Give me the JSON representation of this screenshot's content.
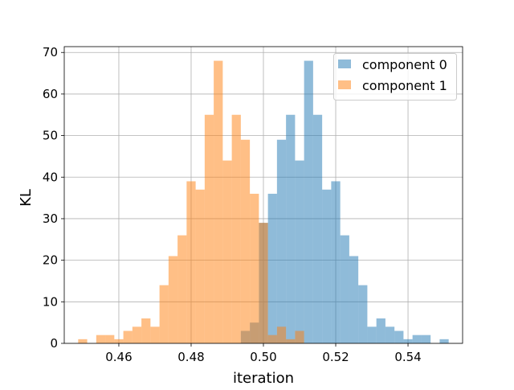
{
  "chart_data": {
    "type": "bar",
    "title": "",
    "xlabel": "iteration",
    "ylabel": "KL",
    "xlim": [
      0.4449,
      0.5551
    ],
    "ylim": [
      0,
      71.4
    ],
    "grid": true,
    "legend_position": "top-right",
    "bin_width": 0.0025,
    "xticks": [
      0.46,
      0.48,
      0.5,
      0.52,
      0.54
    ],
    "xtick_labels": [
      "0.46",
      "0.48",
      "0.50",
      "0.52",
      "0.54"
    ],
    "yticks": [
      0,
      10,
      20,
      30,
      40,
      50,
      60,
      70
    ],
    "ytick_labels": [
      "0",
      "10",
      "20",
      "30",
      "40",
      "50",
      "60",
      "70"
    ],
    "series": [
      {
        "name": "component 0",
        "color": "#1f77b4",
        "opacity": 0.5,
        "bins": [
          {
            "x": 0.495,
            "y": 3
          },
          {
            "x": 0.4975,
            "y": 5
          },
          {
            "x": 0.5,
            "y": 29
          },
          {
            "x": 0.5025,
            "y": 36
          },
          {
            "x": 0.505,
            "y": 49
          },
          {
            "x": 0.5075,
            "y": 55
          },
          {
            "x": 0.51,
            "y": 44
          },
          {
            "x": 0.5125,
            "y": 68
          },
          {
            "x": 0.515,
            "y": 55
          },
          {
            "x": 0.5175,
            "y": 37
          },
          {
            "x": 0.52,
            "y": 39
          },
          {
            "x": 0.5225,
            "y": 26
          },
          {
            "x": 0.525,
            "y": 21
          },
          {
            "x": 0.5275,
            "y": 14
          },
          {
            "x": 0.53,
            "y": 4
          },
          {
            "x": 0.5325,
            "y": 6
          },
          {
            "x": 0.535,
            "y": 4
          },
          {
            "x": 0.5375,
            "y": 3
          },
          {
            "x": 0.54,
            "y": 1
          },
          {
            "x": 0.5425,
            "y": 2
          },
          {
            "x": 0.545,
            "y": 2
          },
          {
            "x": 0.5475,
            "y": 0
          },
          {
            "x": 0.55,
            "y": 1
          }
        ]
      },
      {
        "name": "component 1",
        "color": "#ff7f0e",
        "opacity": 0.5,
        "bins": [
          {
            "x": 0.45,
            "y": 1
          },
          {
            "x": 0.4525,
            "y": 0
          },
          {
            "x": 0.455,
            "y": 2
          },
          {
            "x": 0.4575,
            "y": 2
          },
          {
            "x": 0.46,
            "y": 1
          },
          {
            "x": 0.4625,
            "y": 3
          },
          {
            "x": 0.465,
            "y": 4
          },
          {
            "x": 0.4675,
            "y": 6
          },
          {
            "x": 0.47,
            "y": 4
          },
          {
            "x": 0.4725,
            "y": 14
          },
          {
            "x": 0.475,
            "y": 21
          },
          {
            "x": 0.4775,
            "y": 26
          },
          {
            "x": 0.48,
            "y": 39
          },
          {
            "x": 0.4825,
            "y": 37
          },
          {
            "x": 0.485,
            "y": 55
          },
          {
            "x": 0.4875,
            "y": 68
          },
          {
            "x": 0.49,
            "y": 44
          },
          {
            "x": 0.4925,
            "y": 55
          },
          {
            "x": 0.495,
            "y": 49
          },
          {
            "x": 0.4975,
            "y": 36
          },
          {
            "x": 0.5,
            "y": 29
          },
          {
            "x": 0.5025,
            "y": 2
          },
          {
            "x": 0.505,
            "y": 4
          },
          {
            "x": 0.5075,
            "y": 1
          },
          {
            "x": 0.51,
            "y": 3
          }
        ]
      }
    ]
  }
}
